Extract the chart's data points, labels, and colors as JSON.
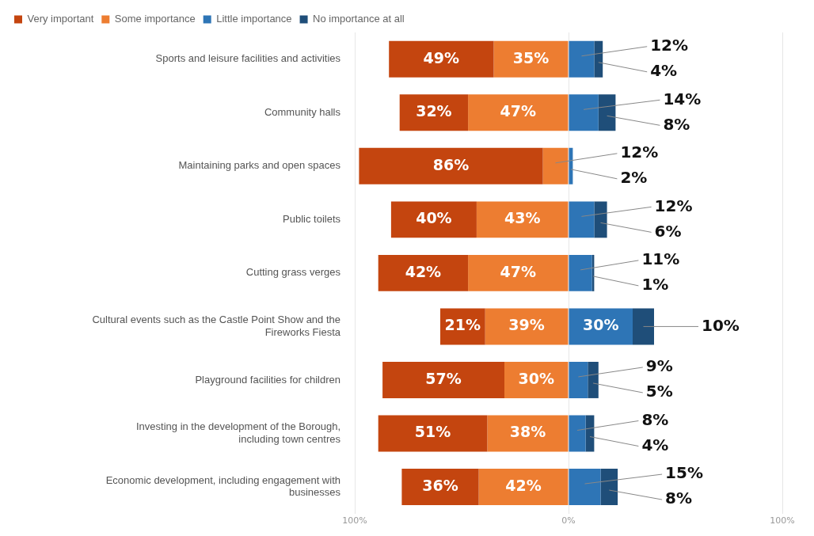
{
  "chart_data": {
    "type": "bar",
    "orientation": "horizontal",
    "categories": [
      "Sports and leisure facilities and activities",
      "Community halls",
      "Maintaining parks and open spaces",
      "Public toilets",
      "Cutting grass verges",
      "Cultural events such as the Castle Point Show and the Fireworks Fiesta",
      "Playground facilities for children",
      "Investing in the development of the Borough, including town centres",
      "Economic development, including engagement with businesses"
    ],
    "series": [
      {
        "name": "Very important",
        "color": "#c4450f",
        "values": [
          49,
          32,
          86,
          40,
          42,
          21,
          57,
          51,
          36
        ],
        "base": [
          -84,
          -79,
          -98,
          -83,
          -89,
          -60,
          -87,
          -89,
          -78
        ],
        "value_labels": [
          "49%",
          "32%",
          "86%",
          "40%",
          "42%",
          "21%",
          "57%",
          "51%",
          "36%"
        ]
      },
      {
        "name": "Some importance",
        "color": "#ed7d31",
        "values": [
          35,
          47,
          12,
          43,
          47,
          39,
          30,
          38,
          42
        ],
        "base": [
          -35,
          -47,
          -12,
          -43,
          -47,
          -39,
          -30,
          -38,
          -42
        ],
        "value_labels": [
          "35%",
          "47%",
          "12%",
          "43%",
          "47%",
          "39%",
          "30%",
          "38%",
          "42%"
        ]
      },
      {
        "name": "Little importance",
        "color": "#2e75b6",
        "values": [
          12,
          14,
          2,
          12,
          11,
          30,
          9,
          8,
          15
        ],
        "base": [
          0,
          0,
          0,
          0,
          0,
          0,
          0,
          0,
          0
        ],
        "value_labels": [
          "12%",
          "14%",
          "2%",
          "12%",
          "11%",
          "30%",
          "9%",
          "8%",
          "15%"
        ]
      },
      {
        "name": "No importance at all",
        "color": "#1f4e79",
        "values": [
          4,
          8,
          null,
          6,
          1,
          10,
          5,
          4,
          8
        ],
        "base": [
          12,
          14,
          null,
          12,
          11,
          30,
          9,
          8,
          15
        ],
        "value_labels": [
          "4%",
          "8%",
          null,
          "6%",
          "1%",
          "10%",
          "5%",
          "4%",
          "8%"
        ]
      }
    ],
    "xlim": [
      -100,
      100
    ],
    "xticks": [
      {
        "value": -100,
        "label": "100%"
      },
      {
        "value": 0,
        "label": "0%"
      },
      {
        "value": 100,
        "label": "100%"
      }
    ],
    "grid": "x",
    "legend": "top left"
  }
}
